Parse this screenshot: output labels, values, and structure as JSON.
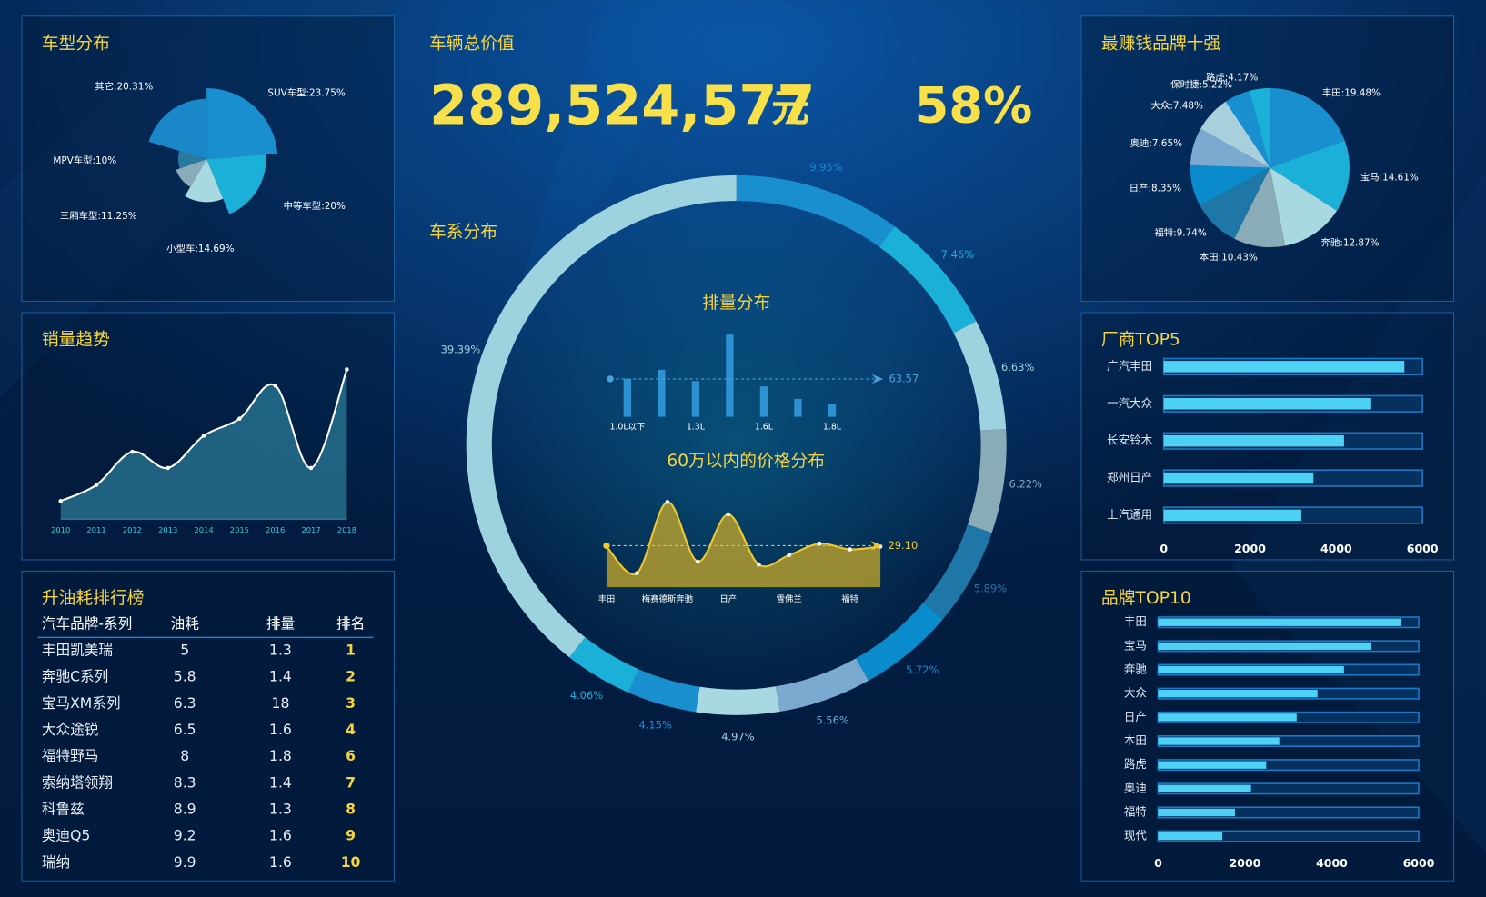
{
  "chart_data": [
    {
      "type": "pie",
      "title": "车型分布",
      "rose": true,
      "values": [
        23.75,
        20,
        14.69,
        11.25,
        10,
        20.31
      ],
      "value_labels": [
        "SUV车型:23.75%",
        "中等车型:20%",
        "小型车:14.69%",
        "三厢车型:11.25%",
        "MPV车型:10%",
        "其它:20.31%"
      ],
      "colors": [
        "#1a8fd0",
        "#1ab0d8",
        "#a8d8e0",
        "#8aacb8",
        "#2a7aa0",
        "#1a88c8"
      ]
    },
    {
      "type": "line",
      "title": "销量趋势",
      "area": true,
      "categories": [
        "2010",
        "2011",
        "2012",
        "2013",
        "2014",
        "2015",
        "2016",
        "2017",
        "2018"
      ],
      "values": [
        19,
        36,
        71,
        54,
        88,
        106,
        141,
        54,
        158
      ],
      "ylim": [
        0,
        160
      ],
      "color": "#ffffff",
      "area_color": "#2a7a96"
    },
    {
      "type": "donut",
      "title": "车系分布",
      "values": [
        9.95,
        7.46,
        6.63,
        6.22,
        5.89,
        5.72,
        5.56,
        4.97,
        4.15,
        4.06,
        39.39
      ],
      "value_labels": [
        "9.95%",
        "7.46%",
        "6.63%",
        "6.22%",
        "5.89%",
        "5.72%",
        "5.56%",
        "4.97%",
        "4.15%",
        "4.06%",
        "39.39%"
      ],
      "colors": [
        "#1a8fd0",
        "#1ab0d8",
        "#9dd3df",
        "#8aacb8",
        "#1f77a8",
        "#0a8ccc",
        "#7aaad0",
        "#a8d8e0",
        "#1a8fd0",
        "#1ab0d8",
        "#9dd3df"
      ]
    },
    {
      "type": "bar",
      "title": "排量分布",
      "categories": [
        "1.0L以下",
        null,
        "1.3L",
        null,
        "1.6L",
        null,
        "1.8L"
      ],
      "values": [
        64,
        79,
        60,
        138,
        51,
        30,
        21
      ],
      "ylim": [
        0,
        140
      ],
      "mark_line": 63.57,
      "color": "#2e92d2"
    },
    {
      "type": "line",
      "title": "60万以内的价格分布",
      "area": true,
      "categories": [
        "丰田",
        null,
        "梅赛德斯奔驰",
        null,
        "日产",
        null,
        "雪佛兰",
        null,
        "福特",
        null
      ],
      "values": [
        28.5,
        9.9,
        59.7,
        17.9,
        51.0,
        15.9,
        22.5,
        30.5,
        26.5,
        28.5
      ],
      "ylim": [
        0,
        60
      ],
      "mark_line": {
        "value": 29.1,
        "label": "29.10"
      },
      "color": "#f0c830",
      "area_color": "#c8aa28"
    },
    {
      "type": "pie",
      "title": "最赚钱品牌十强",
      "values": [
        19.48,
        14.61,
        12.87,
        10.43,
        9.74,
        8.35,
        7.65,
        7.48,
        5.22,
        4.17
      ],
      "value_labels": [
        "丰田:19.48%",
        "宝马:14.61%",
        "奔驰:12.87%",
        "本田:10.43%",
        "福特:9.74%",
        "日产:8.35%",
        "奥迪:7.65%",
        "大众:7.48%",
        "保时捷:5.22%",
        "路虎:4.17%"
      ],
      "colors": [
        "#1a8fd0",
        "#1ab0d8",
        "#a8d8e0",
        "#8aacb8",
        "#1f77a8",
        "#0a8ccc",
        "#7aaad0",
        "#a8d0dc",
        "#1a8fd0",
        "#1ab0d8"
      ]
    },
    {
      "type": "hbar",
      "title": "厂商TOP5",
      "categories": [
        "广汽丰田",
        "一汽大众",
        "长安铃木",
        "郑州日产",
        "上汽通用"
      ],
      "values": [
        5580,
        4790,
        4180,
        3470,
        3190
      ],
      "xlim": [
        0,
        6000
      ],
      "xticks": [
        0,
        2000,
        4000,
        6000
      ],
      "color": "#4dd2f5"
    },
    {
      "type": "hbar",
      "title": "品牌TOP10",
      "categories": [
        "丰田",
        "宝马",
        "奔驰",
        "大众",
        "日产",
        "本田",
        "路虎",
        "奥迪",
        "福特",
        "现代"
      ],
      "values": [
        5590,
        4890,
        4280,
        3670,
        3190,
        2790,
        2490,
        2140,
        1770,
        1480
      ],
      "xlim": [
        0,
        6000
      ],
      "xticks": [
        0,
        2000,
        4000,
        6000
      ],
      "color": "#4dd2f5"
    }
  ],
  "summary": {
    "title": "车辆总价值",
    "value": "289,524,577",
    "unit": "元",
    "percent": "58%"
  },
  "table": {
    "title": "升油耗排行榜",
    "columns": [
      "汽车品牌-系列",
      "油耗",
      "排量",
      "排名"
    ],
    "rows": [
      [
        "丰田凯美瑞",
        5,
        1.3,
        1
      ],
      [
        "奔驰C系列",
        5.8,
        1.4,
        2
      ],
      [
        "宝马XM系列",
        6.3,
        18,
        3
      ],
      [
        "大众途锐",
        6.5,
        1.6,
        4
      ],
      [
        "福特野马",
        8,
        1.8,
        6
      ],
      [
        "索纳塔领翔",
        8.3,
        1.4,
        7
      ],
      [
        "科鲁兹",
        8.9,
        1.3,
        8
      ],
      [
        "奥迪Q5",
        9.2,
        1.6,
        9
      ],
      [
        "瑞纳",
        9.9,
        1.6,
        10
      ]
    ]
  }
}
